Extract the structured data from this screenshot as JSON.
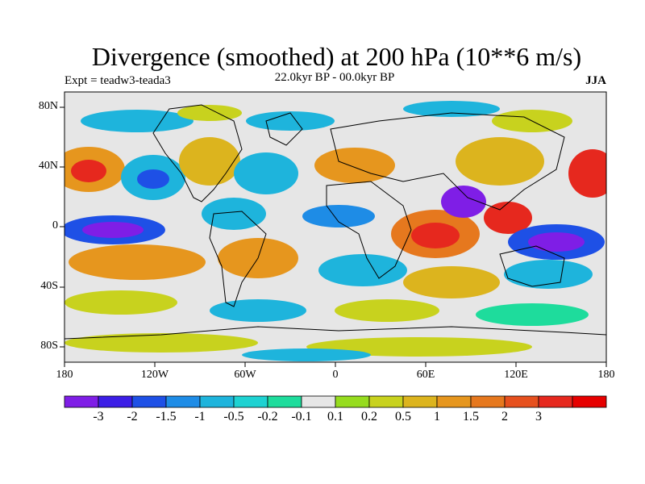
{
  "title": "Divergence (smoothed) at 200 hPa (10**6 m/s)",
  "experiment": "Expt = teadw3-teada3",
  "period": "22.0kyr BP - 00.0kyr BP",
  "season": "JJA",
  "lat_labels": [
    "80N",
    "40N",
    "0",
    "40S",
    "80S"
  ],
  "lon_labels": [
    "180",
    "120W",
    "60W",
    "0",
    "60E",
    "120E",
    "180"
  ],
  "colorbar": {
    "colors": [
      "#7f1ee6",
      "#3c1ee6",
      "#1e50e6",
      "#1e8ce6",
      "#1eb4dc",
      "#1ed2d2",
      "#1edc9c",
      "#e6e6e6",
      "#96dc1e",
      "#c8d21e",
      "#dcb41e",
      "#e6961e",
      "#e6781e",
      "#e6501e",
      "#e6281e",
      "#e60000"
    ],
    "labels": [
      "-3",
      "-2",
      "-1.5",
      "-1",
      "-0.5",
      "-0.2",
      "-0.1",
      "0.1",
      "0.2",
      "0.5",
      "1",
      "1.5",
      "2",
      "3"
    ]
  },
  "map_colors": {
    "neg_strong": "#7f1ee6",
    "neg": "#1e50e6",
    "neg_weak": "#1eb4dc",
    "neutral": "#e6e6e6",
    "pos_weak": "#c8d21e",
    "pos": "#e6961e",
    "pos_strong": "#e6281e"
  }
}
